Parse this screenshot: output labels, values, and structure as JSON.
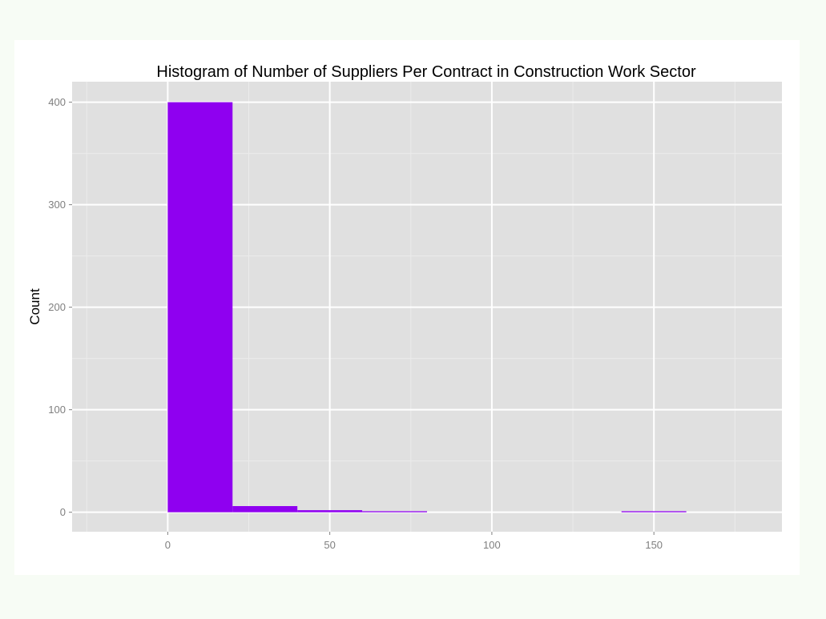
{
  "chart_data": {
    "type": "bar",
    "title": "Histogram of Number of Suppliers Per Contract in Construction Work Sector",
    "xlabel": "",
    "ylabel": "Count",
    "bin_width": 20,
    "bins": [
      {
        "start": 0,
        "end": 20,
        "count": 400
      },
      {
        "start": 20,
        "end": 40,
        "count": 6
      },
      {
        "start": 40,
        "end": 60,
        "count": 2
      },
      {
        "start": 60,
        "end": 80,
        "count": 1
      },
      {
        "start": 80,
        "end": 100,
        "count": 0
      },
      {
        "start": 100,
        "end": 120,
        "count": 0
      },
      {
        "start": 120,
        "end": 140,
        "count": 0
      },
      {
        "start": 140,
        "end": 160,
        "count": 1
      }
    ],
    "xlim": [
      -29.5,
      189.5
    ],
    "ylim": [
      -19,
      420
    ],
    "x_ticks": [
      0,
      50,
      100,
      150
    ],
    "y_ticks": [
      0,
      100,
      200,
      300,
      400
    ],
    "grid": true,
    "colors": {
      "bar": "#8f00f0",
      "panel": "#e0e0e0",
      "grid_major": "#ffffff",
      "grid_minor": "#ebebeb"
    }
  }
}
